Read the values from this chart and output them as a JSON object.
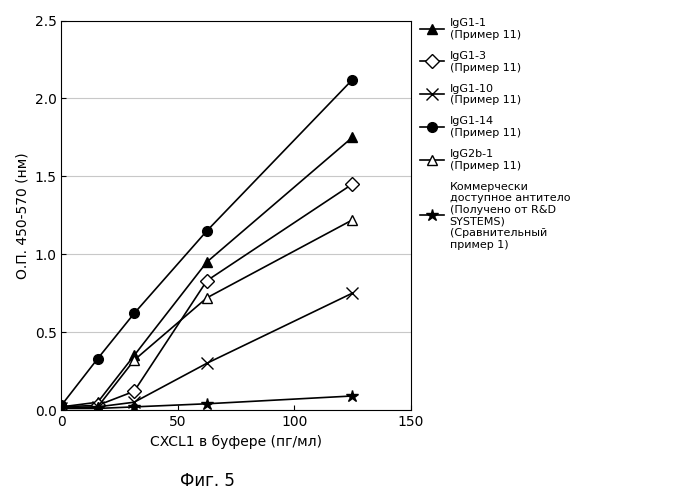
{
  "x_values": [
    0,
    15.6,
    31.25,
    62.5,
    125
  ],
  "series": [
    {
      "name": "IgG1-1\n(Пример 11)",
      "y": [
        0.02,
        0.05,
        0.35,
        0.95,
        1.75
      ],
      "marker": "^",
      "mfc": "black",
      "mec": "black",
      "markersize": 7,
      "linewidth": 1.2
    },
    {
      "name": "IgG1-3\n(Пример 11)",
      "y": [
        0.02,
        0.03,
        0.12,
        0.83,
        1.45
      ],
      "marker": "D",
      "mfc": "white",
      "mec": "black",
      "markersize": 7,
      "linewidth": 1.2
    },
    {
      "name": "IgG1-10\n(Пример 11)",
      "y": [
        0.01,
        0.02,
        0.05,
        0.3,
        0.75
      ],
      "marker": "x",
      "mfc": "black",
      "mec": "black",
      "markersize": 8,
      "linewidth": 1.2
    },
    {
      "name": "IgG1-14\n(Пример 11)",
      "y": [
        0.03,
        0.33,
        0.62,
        1.15,
        2.12
      ],
      "marker": "o",
      "mfc": "black",
      "mec": "black",
      "markersize": 7,
      "linewidth": 1.2
    },
    {
      "name": "IgG2b-1\n(Пример 11)",
      "y": [
        0.01,
        0.02,
        0.32,
        0.72,
        1.22
      ],
      "marker": "^",
      "mfc": "white",
      "mec": "black",
      "markersize": 7,
      "linewidth": 1.2
    },
    {
      "name": "Коммерчески\nдоступное антитело\n(Получено от R&D\nSYSTEMS)\n(Сравнительный\nпример 1)",
      "y": [
        0.01,
        0.01,
        0.02,
        0.04,
        0.09
      ],
      "marker": "*",
      "mfc": "black",
      "mec": "black",
      "markersize": 9,
      "linewidth": 1.2
    }
  ],
  "xlabel": "CXCL1 в буфере (пг/мл)",
  "ylabel": "О.П. 450-570 (нм)",
  "xlim": [
    0,
    150
  ],
  "ylim": [
    0,
    2.5
  ],
  "xticks": [
    0,
    50,
    100,
    150
  ],
  "yticks": [
    0.0,
    0.5,
    1.0,
    1.5,
    2.0,
    2.5
  ],
  "fig_title": "Фиг. 5",
  "background_color": "#ffffff",
  "grid_color": "#c8c8c8",
  "fontsize_ticks": 10,
  "fontsize_label": 10,
  "fontsize_legend": 8,
  "fontsize_title": 12,
  "legend_labels": [
    "IgG1-1\n(Пример 11)",
    "IgG1-3\n(Пример 11)",
    "IgG1-10\n(Пример 11)",
    "IgG1-14\n(Пример 11)",
    "IgG2b-1\n(Пример 11)",
    "Коммерчески\nдоступное антитело\n(Получено от R&D\nSYSTEMS)\n(Сравнительный\nпример 1)"
  ]
}
